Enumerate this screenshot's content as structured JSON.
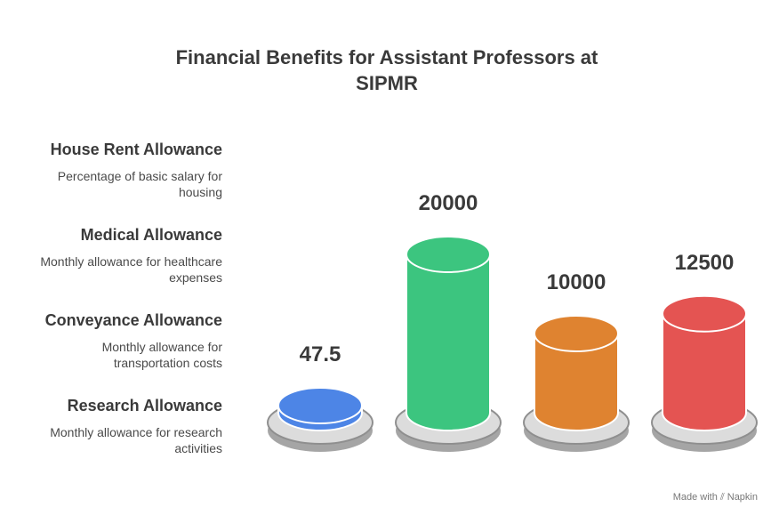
{
  "title_line1": "Financial Benefits for Assistant Professors at",
  "title_line2": "SIPMR",
  "chart_data": {
    "type": "bar",
    "categories": [
      "Research Allowance",
      "Medical Allowance",
      "Conveyance Allowance",
      "House Rent Allowance"
    ],
    "values": [
      47.5,
      20000,
      10000,
      12500
    ],
    "value_labels": [
      "47.5",
      "20000",
      "10000",
      "12500"
    ],
    "colors": [
      "#4d85e6",
      "#3cc57f",
      "#df8330",
      "#e45452"
    ]
  },
  "labels": [
    {
      "title": "House Rent Allowance",
      "desc_line1": "Percentage of basic salary for",
      "desc_line2": "housing"
    },
    {
      "title": "Medical Allowance",
      "desc_line1": "Monthly allowance for healthcare",
      "desc_line2": "expenses"
    },
    {
      "title": "Conveyance Allowance",
      "desc_line1": "Monthly allowance for",
      "desc_line2": "transportation costs"
    },
    {
      "title": "Research Allowance",
      "desc_line1": "Monthly allowance for research",
      "desc_line2": "activities"
    }
  ],
  "footer": {
    "prefix": "Made with",
    "brand": "Napkin",
    "icon": "napkin-logo-icon"
  }
}
